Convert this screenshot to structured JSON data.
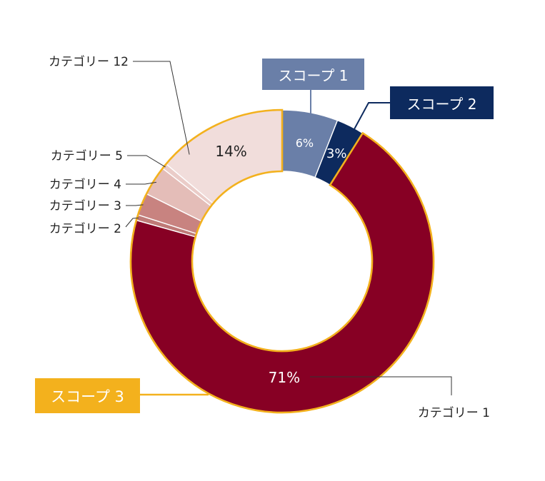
{
  "chart_data": {
    "type": "pie",
    "title": "",
    "colors": {
      "scope1": "#6a7fa8",
      "scope2": "#0d2a5e",
      "cat1": "#870024",
      "cat2": "#bf7a77",
      "cat3": "#c88380",
      "cat4": "#e4bdb8",
      "cat5": "#eaccc8",
      "cat12": "#f1dddb",
      "outline": "#f3b11d",
      "leader": "#333333"
    },
    "slices": [
      {
        "key": "scope1",
        "label": "",
        "value": 6,
        "value_label": "6%"
      },
      {
        "key": "scope2",
        "label": "",
        "value": 3,
        "value_label": "3%"
      },
      {
        "key": "cat1",
        "label": "カテゴリー 1",
        "value": 71,
        "value_label": "71%"
      },
      {
        "key": "cat2",
        "label": "カテゴリー 2",
        "value": 0.6,
        "value_label": ""
      },
      {
        "key": "cat3",
        "label": "カテゴリー 3",
        "value": 2.4,
        "value_label": ""
      },
      {
        "key": "cat4",
        "label": "カテゴリー 4",
        "value": 3.2,
        "value_label": ""
      },
      {
        "key": "cat5",
        "label": "カテゴリー 5",
        "value": 0.6,
        "value_label": ""
      },
      {
        "key": "cat12",
        "label": "カテゴリー 12",
        "value": 14,
        "value_label": "14%"
      }
    ],
    "groups": [
      {
        "key": "scope1",
        "label": "スコープ 1",
        "color": "#6a7fa8"
      },
      {
        "key": "scope2",
        "label": "スコープ 2",
        "color": "#0d2a5e"
      },
      {
        "key": "scope3",
        "label": "スコープ 3",
        "color": "#f3b11d"
      }
    ]
  }
}
